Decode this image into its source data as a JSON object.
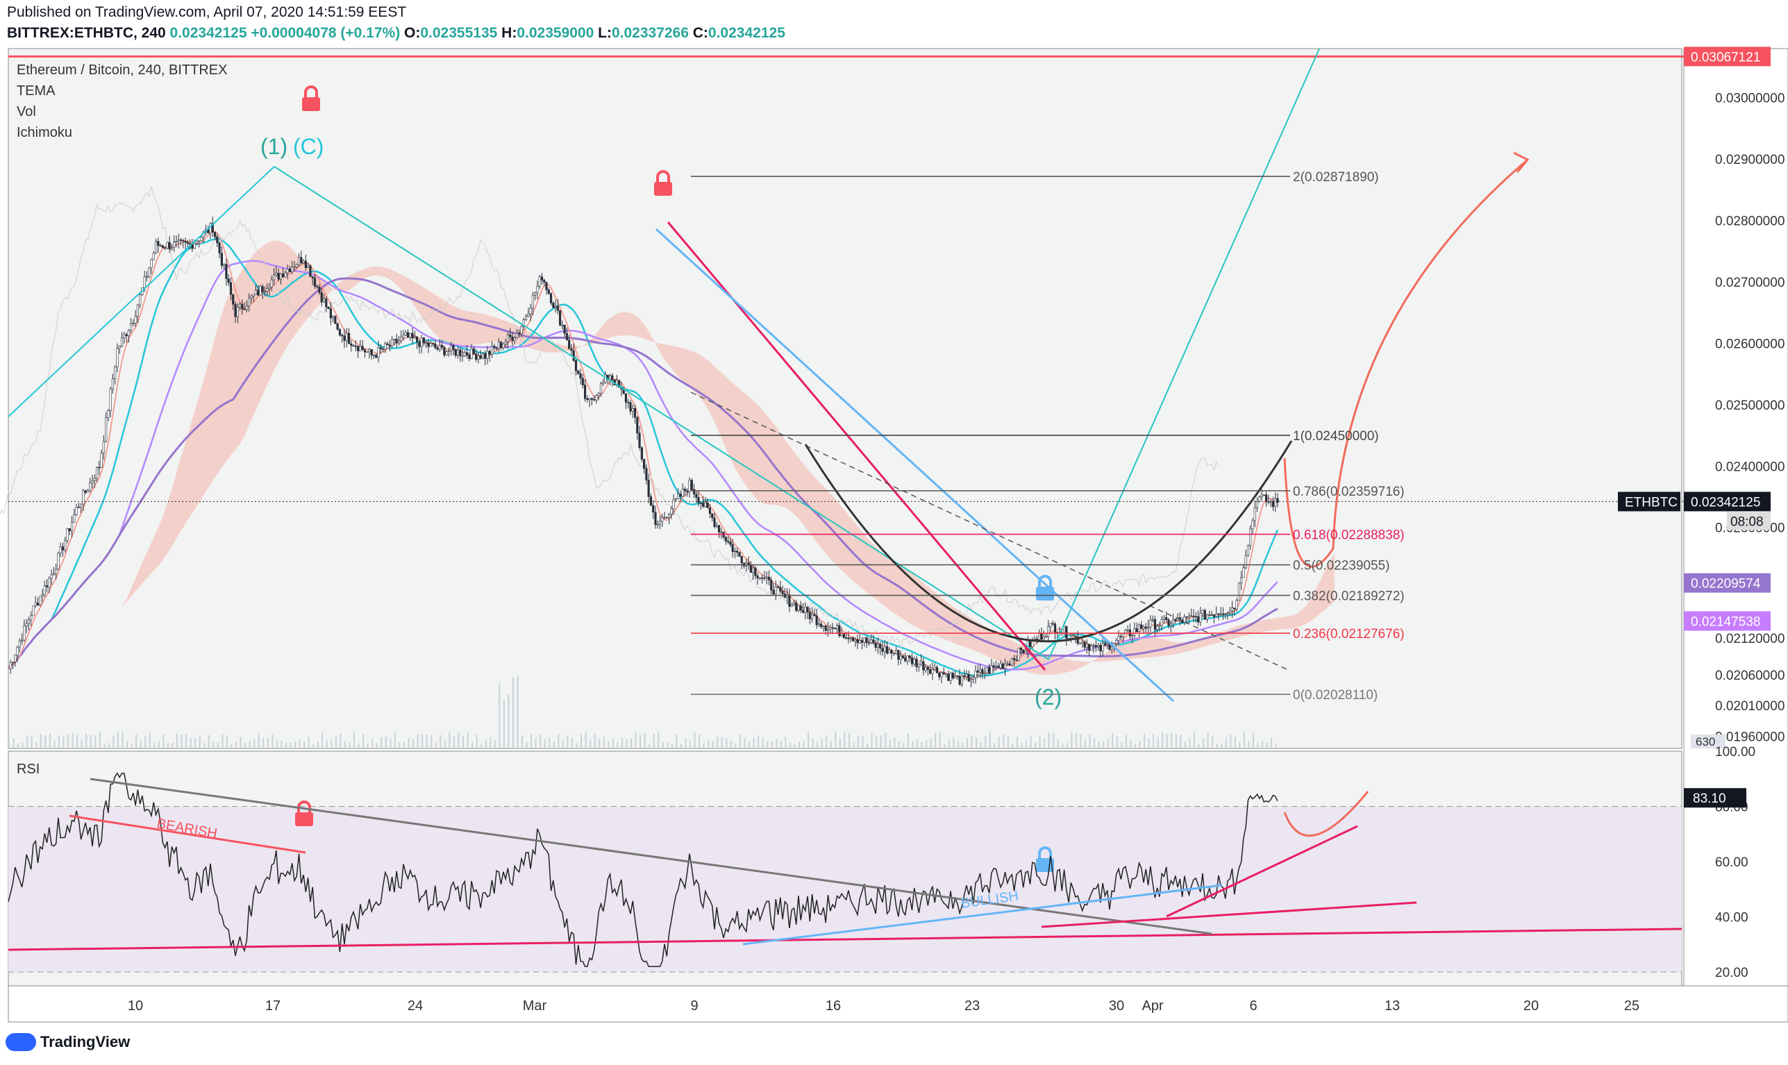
{
  "header": {
    "published": "Published on TradingView.com, April 07, 2020 14:51:59 EEST",
    "symbol_line": {
      "symbol": "BITTREX:ETHBTC, 240",
      "last": "0.02342125",
      "change": "+0.00004078 (+0.17%)",
      "open_label": "O:",
      "open": "0.02355135",
      "high_label": "H:",
      "high": "0.02359000",
      "low_label": "L:",
      "low": "0.02337266",
      "close_label": "C:",
      "close": "0.02342125"
    }
  },
  "legend": {
    "title": "Ethereum / Bitcoin, 240, BITTREX",
    "indicators": [
      "TEMA",
      "Vol",
      "Ichimoku"
    ],
    "rsi_label": "RSI"
  },
  "brand": {
    "name": "TradingView",
    "icon": "tradingview-logo-icon"
  },
  "colors": {
    "background": "#f2f3f3",
    "up": "#26a69a",
    "down": "#ef5350",
    "fib_pink": "#e91e63",
    "fib_red": "#f23645",
    "resistance": "#f7525f",
    "cloud": "#f4b3a5",
    "teal": "#26c6da",
    "purple": "#9575cd",
    "black_candles": "#2a2e39"
  },
  "chart_data": [
    {
      "type": "candlestick",
      "title": "Ethereum / Bitcoin, 240, BITTREX",
      "x_ticks": [
        "10",
        "17",
        "24",
        "Mar",
        "9",
        "16",
        "23",
        "30",
        "Apr",
        "6",
        "13",
        "20",
        "25"
      ],
      "price_axis_labels": [
        "0.03000000",
        "0.02900000",
        "0.02800000",
        "0.02700000",
        "0.02600000",
        "0.02500000",
        "0.02400000",
        "0.02300000",
        "0.02120000",
        "0.02060000",
        "0.02010000",
        "0.01960000"
      ],
      "ylim": [
        0.0194,
        0.0308
      ],
      "price_badges": [
        {
          "label": "0.03067121",
          "price": 0.03067121,
          "color": "#f7525f"
        },
        {
          "label": "0.02342125",
          "price": 0.02342125,
          "color": "#131722",
          "tag": "ETHBTC",
          "countdown": "08:08"
        },
        {
          "label": "0.02209574",
          "price": 0.02209574,
          "color": "#9575cd"
        },
        {
          "label": "0.02147538",
          "price": 0.02147538,
          "color": "#c77dff"
        }
      ],
      "volume_badge": "630",
      "approx_close_path": [
        [
          0,
          0.0207
        ],
        [
          10,
          0.0216
        ],
        [
          20,
          0.0223
        ],
        [
          30,
          0.0233
        ],
        [
          40,
          0.024
        ],
        [
          48,
          0.0259
        ],
        [
          55,
          0.0264
        ],
        [
          65,
          0.0276
        ],
        [
          80,
          0.0276
        ],
        [
          90,
          0.0279
        ],
        [
          100,
          0.0265
        ],
        [
          115,
          0.027
        ],
        [
          130,
          0.0274
        ],
        [
          145,
          0.0262
        ],
        [
          160,
          0.0258
        ],
        [
          175,
          0.0261
        ],
        [
          190,
          0.0259
        ],
        [
          210,
          0.0258
        ],
        [
          225,
          0.0262
        ],
        [
          235,
          0.0271
        ],
        [
          245,
          0.0262
        ],
        [
          255,
          0.025
        ],
        [
          265,
          0.0255
        ],
        [
          275,
          0.0249
        ],
        [
          285,
          0.023
        ],
        [
          300,
          0.0237
        ],
        [
          320,
          0.0226
        ],
        [
          340,
          0.0219
        ],
        [
          360,
          0.0214
        ],
        [
          380,
          0.0211
        ],
        [
          400,
          0.0208
        ],
        [
          420,
          0.0205
        ],
        [
          440,
          0.0208
        ],
        [
          460,
          0.0214
        ],
        [
          480,
          0.021
        ],
        [
          500,
          0.0214
        ],
        [
          520,
          0.0215
        ],
        [
          540,
          0.0217
        ],
        [
          550,
          0.0235
        ],
        [
          556,
          0.0234
        ]
      ],
      "fib_levels": [
        {
          "label": "2(0.02871890)",
          "price": 0.0287189,
          "color": "#555555"
        },
        {
          "label": "1(0.02450000)",
          "price": 0.0245,
          "color": "#444444"
        },
        {
          "label": "0.786(0.02359716)",
          "price": 0.02359716,
          "color": "#555555"
        },
        {
          "label": "0.618(0.02288838)",
          "price": 0.02288838,
          "color": "#e91e63"
        },
        {
          "label": "0.5(0.02239055)",
          "price": 0.02239055,
          "color": "#555555"
        },
        {
          "label": "0.382(0.02189272)",
          "price": 0.02189272,
          "color": "#555555"
        },
        {
          "label": "0.236(0.02127676)",
          "price": 0.02127676,
          "color": "#f23645"
        },
        {
          "label": "0(0.02028110)",
          "price": 0.0202811,
          "color": "#777777"
        }
      ],
      "wave_labels": [
        {
          "text": "(1)",
          "color": "#26a69a"
        },
        {
          "text": "(C)",
          "color": "#26c6da"
        },
        {
          "text": "(2)",
          "color": "#26a69a"
        }
      ]
    },
    {
      "type": "line",
      "title": "RSI",
      "ylim": [
        15,
        100
      ],
      "axis_labels": [
        "100.00",
        "80.00",
        "60.00",
        "40.00",
        "20.00"
      ],
      "current_label": "83.10",
      "current_value": 83.1,
      "annotations": [
        {
          "text": "BEARISH",
          "color": "#f7525f"
        },
        {
          "text": "BULLISH",
          "color": "#64b5f6"
        }
      ]
    }
  ]
}
